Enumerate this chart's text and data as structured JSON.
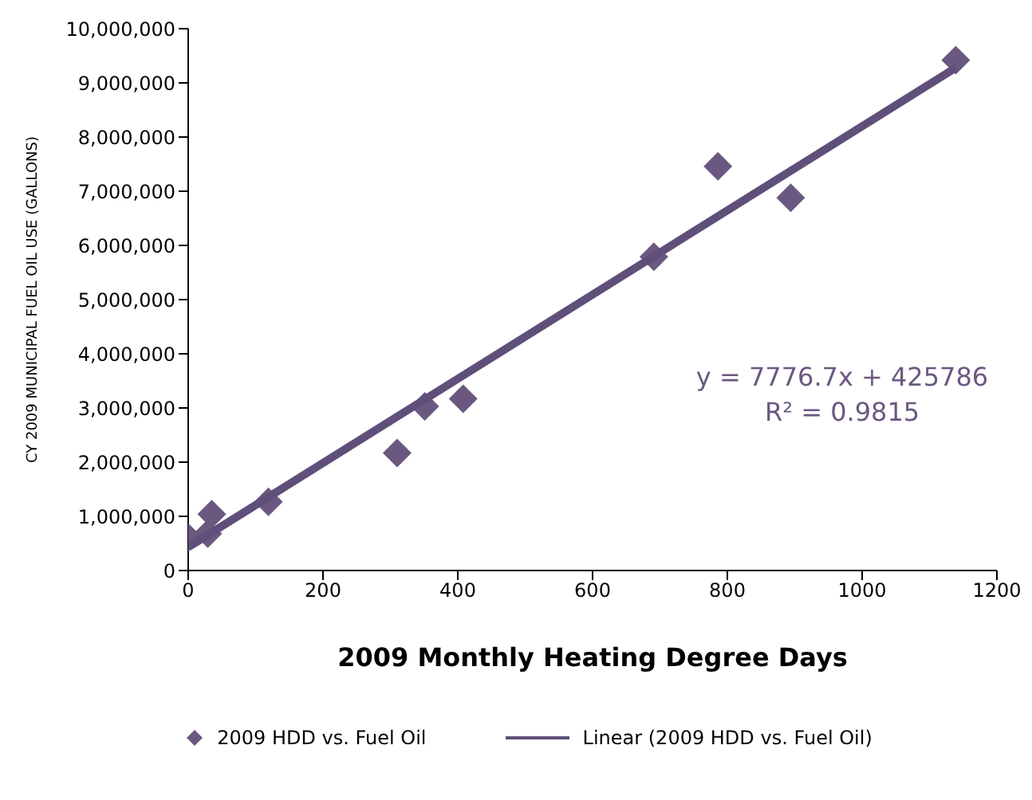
{
  "chart_data": {
    "type": "scatter",
    "xlabel": "2009 Monthly Heating Degree Days",
    "ylabel": "CY 2009 MUNICIPAL FUEL OIL USE (GALLONS)",
    "xlim": [
      0,
      1200
    ],
    "xticks": [
      0,
      200,
      400,
      600,
      800,
      1000,
      1200
    ],
    "ylim": [
      0,
      10000000
    ],
    "yticks": [
      0,
      {
        "value": 1000000,
        "label": "1,000,000"
      },
      {
        "value": 2000000,
        "label": "2,000,000"
      },
      {
        "value": 3000000,
        "label": "3,000,000"
      },
      {
        "value": 4000000,
        "label": "4,000,000"
      },
      {
        "value": 5000000,
        "label": "5,000,000"
      },
      {
        "value": 6000000,
        "label": "6,000,000"
      },
      {
        "value": 7000000,
        "label": "7,000,000"
      },
      {
        "value": 8000000,
        "label": "8,000,000"
      },
      {
        "value": 9000000,
        "label": "9,000,000"
      },
      {
        "value": 10000000,
        "label": "10,000,000"
      }
    ],
    "grid": false,
    "legend": "bottom",
    "marker": "diamond",
    "series": [
      {
        "name": "2009 HDD vs. Fuel Oil",
        "color": "#6b5880",
        "x": [
          0,
          29,
          35,
          119,
          310,
          351,
          408,
          691,
          786,
          894,
          1139
        ],
        "values": [
          610000,
          680000,
          1040000,
          1270000,
          2170000,
          3030000,
          3170000,
          5790000,
          7460000,
          6880000,
          9420000
        ]
      },
      {
        "name": "Linear (2009 HDD vs. Fuel Oil)",
        "type": "line",
        "color": "#5f4f7a",
        "marker": "none",
        "line_style": "solid",
        "x": [
          0,
          1139
        ],
        "values": [
          430000,
          9280000
        ]
      }
    ],
    "annotations": [
      "y = 7776.7x + 425786",
      "R² = 0.9815"
    ]
  }
}
